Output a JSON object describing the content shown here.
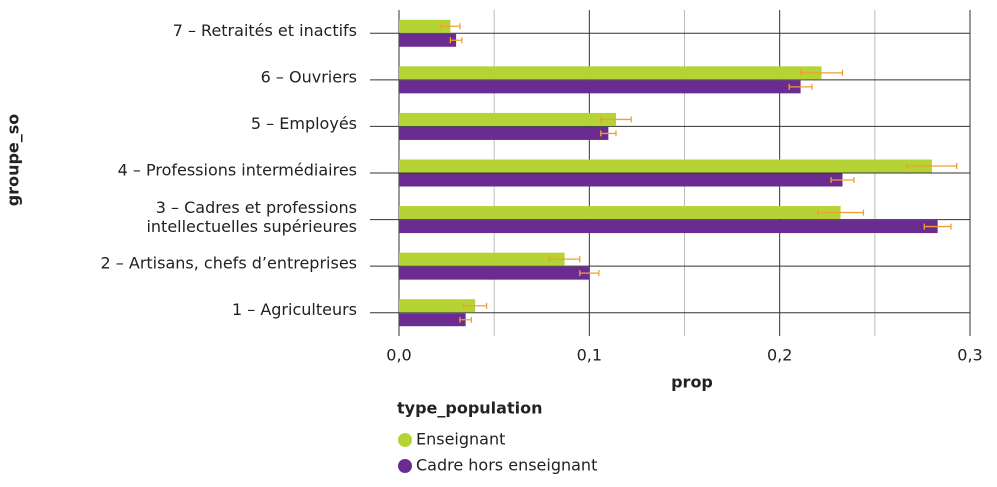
{
  "chart_data": {
    "type": "barh",
    "categories": [
      "7 – Retraités et inactifs",
      "6 – Ouvriers",
      "5 – Employés",
      "4 – Professions intermédiaires",
      "3 – Cadres et professions\nintellectuelles supérieures",
      "2 – Artisans, chefs d’entreprises",
      "1 – Agriculteurs"
    ],
    "series": [
      {
        "name": "Enseignant",
        "color": "#b5d334",
        "values": [
          0.027,
          0.222,
          0.114,
          0.28,
          0.232,
          0.087,
          0.04
        ],
        "errors": [
          0.005,
          0.011,
          0.008,
          0.013,
          0.012,
          0.008,
          0.006
        ]
      },
      {
        "name": "Cadre hors enseignant",
        "color": "#6a2c91",
        "values": [
          0.03,
          0.211,
          0.11,
          0.233,
          0.283,
          0.1,
          0.035
        ],
        "errors": [
          0.003,
          0.006,
          0.004,
          0.006,
          0.007,
          0.005,
          0.003
        ]
      }
    ],
    "error_color": "#f0a030",
    "xlim": [
      0,
      0.3
    ],
    "xticks": [
      {
        "value": 0,
        "label": "0,0"
      },
      {
        "value": 0.1,
        "label": "0,1"
      },
      {
        "value": 0.2,
        "label": "0,2"
      },
      {
        "value": 0.3,
        "label": "0,3"
      }
    ],
    "minor_xticks": [
      0.05,
      0.15,
      0.25
    ],
    "xlabel": "prop",
    "ylabel": "groupe_so",
    "legend_title": "type_population",
    "grid": true
  }
}
